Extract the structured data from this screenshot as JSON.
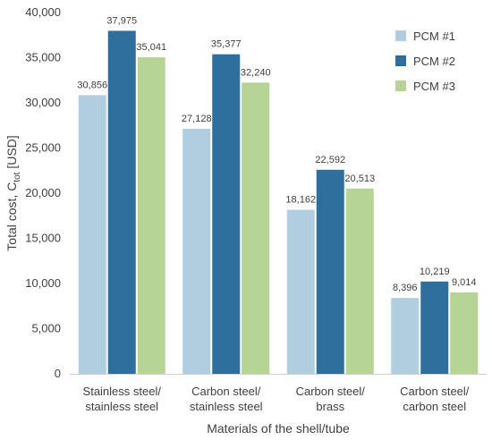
{
  "chart_data": {
    "type": "bar",
    "categories": [
      [
        "Stainless steel/",
        "stainless steel"
      ],
      [
        "Carbon steel/",
        "stainless steel"
      ],
      [
        "Carbon steel/",
        "brass"
      ],
      [
        "Carbon steel/",
        "carbon steel"
      ]
    ],
    "series": [
      {
        "name": "PCM #1",
        "color": "#b1cde0",
        "values": [
          30856,
          27128,
          18162,
          8396
        ],
        "labels": [
          "30,856",
          "27,128",
          "18,162",
          "8,396"
        ]
      },
      {
        "name": "PCM #2",
        "color": "#2e6f9e",
        "values": [
          37975,
          35377,
          22592,
          10219
        ],
        "labels": [
          "37,975",
          "35,377",
          "22,592",
          "10,219"
        ]
      },
      {
        "name": "PCM #3",
        "color": "#b5d496",
        "values": [
          35041,
          32240,
          20513,
          9014
        ],
        "labels": [
          "35,041",
          "32,240",
          "20,513",
          "9,014"
        ]
      }
    ],
    "yticks": [
      0,
      5000,
      10000,
      15000,
      20000,
      25000,
      30000,
      35000,
      40000
    ],
    "ytick_labels": [
      "0",
      "5,000",
      "10,000",
      "15,000",
      "20,000",
      "25,000",
      "30,000",
      "35,000",
      "40,000"
    ],
    "ylim": [
      0,
      40000
    ],
    "ylabel": {
      "main": "Total cost, C",
      "sub": "tot",
      "tail": " [USD]"
    },
    "xlabel": "Materials of the shell/tube",
    "title": "",
    "legend_position": "top-right",
    "grid": false
  }
}
